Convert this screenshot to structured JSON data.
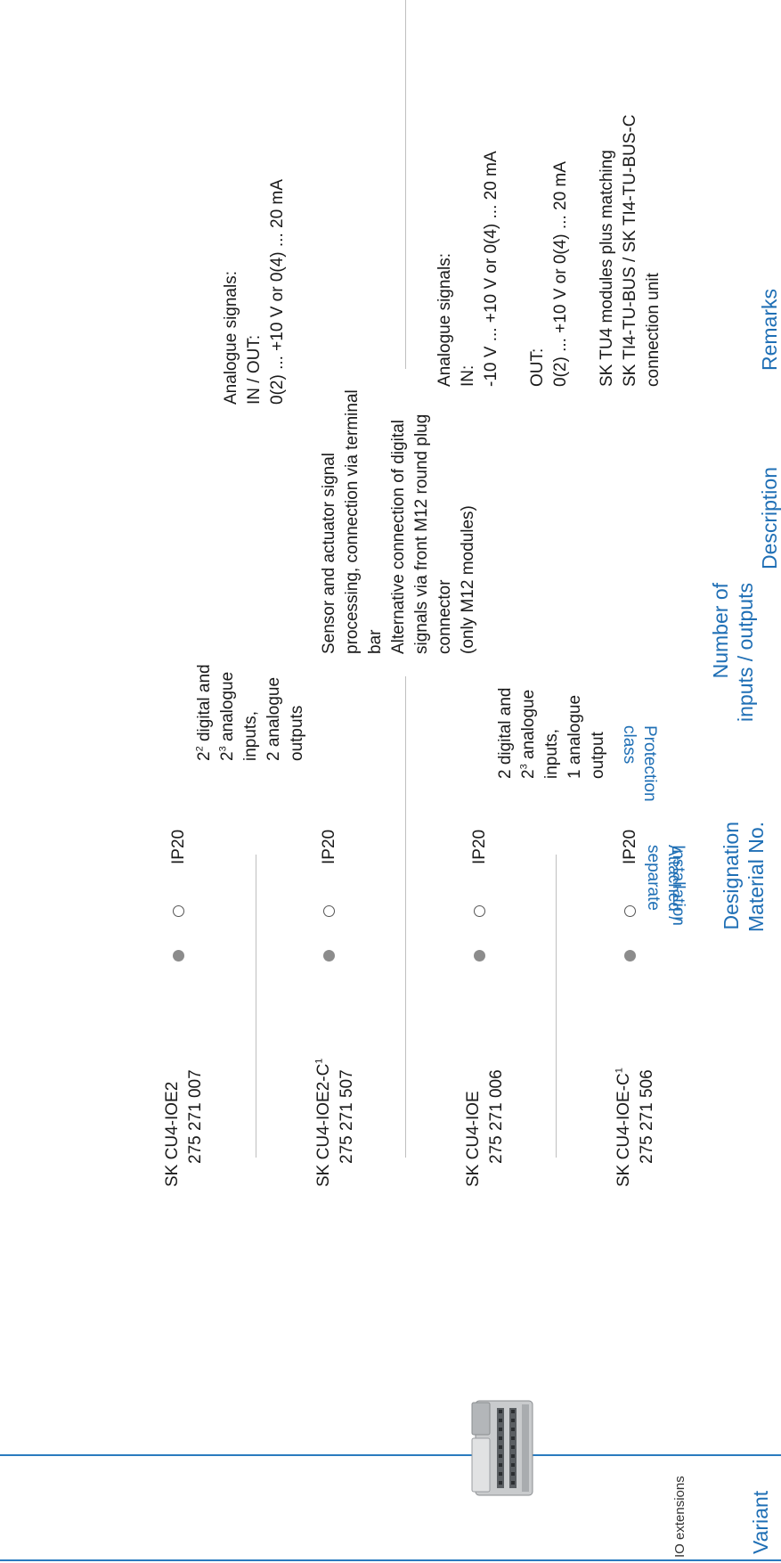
{
  "headers": {
    "variant": "Variant",
    "designation": [
      "Designation",
      "Material No."
    ],
    "installation": "Installation",
    "attached": [
      "Attached /",
      "separate"
    ],
    "protection": [
      "Protection",
      "class"
    ],
    "number": [
      "Number of",
      "inputs / outputs"
    ],
    "description": "Description",
    "remarks": "Remarks"
  },
  "variant_group": {
    "label": "IO extensions",
    "image_icon": "io-module-icon"
  },
  "rows": [
    {
      "designation": "SK CU4-IOE2",
      "sup": "",
      "material": "275 271 007",
      "protection": "IP20"
    },
    {
      "designation": "SK CU4-IOE2-C",
      "sup": "1",
      "material": "275 271 507",
      "protection": "IP20"
    },
    {
      "designation": "SK CU4-IOE",
      "sup": "",
      "material": "275 271 006",
      "protection": "IP20"
    },
    {
      "designation": "SK CU4-IOE-C",
      "sup": "1",
      "material": "275 271 506",
      "protection": "IP20"
    }
  ],
  "groups": [
    {
      "number": [
        {
          "text": "2",
          "sup": "2",
          "rest": " digital and"
        },
        {
          "text": "2",
          "sup": "3",
          "rest": " analogue"
        },
        {
          "text": "inputs,",
          "sup": "",
          "rest": ""
        },
        {
          "text": "2 analogue",
          "sup": "",
          "rest": ""
        },
        {
          "text": "outputs",
          "sup": "",
          "rest": ""
        }
      ],
      "remarks": [
        "Analogue signals:",
        "IN / OUT:",
        "0(2) ... +10 V or 0(4) ... 20 mA"
      ]
    },
    {
      "number": [
        {
          "text": "2 digital and",
          "sup": "",
          "rest": ""
        },
        {
          "text": "2",
          "sup": "3",
          "rest": " analogue"
        },
        {
          "text": "inputs,",
          "sup": "",
          "rest": ""
        },
        {
          "text": "1 analogue",
          "sup": "",
          "rest": ""
        },
        {
          "text": "output",
          "sup": "",
          "rest": ""
        }
      ],
      "remarks": [
        "Analogue signals:",
        "IN:",
        "-10 V ... +10 V or 0(4) ... 20 mA",
        "",
        "OUT:",
        "0(2) ... +10 V or 0(4) ... 20 mA",
        "",
        "SK TU4 modules plus matching",
        "SK TI4-TU-BUS / SK TI4-TU-BUS-C",
        "connection unit"
      ]
    }
  ],
  "description": [
    "Sensor and actuator signal",
    "processing, connection via terminal",
    "bar",
    "Alternative connection of digital",
    "signals via front M12 round plug",
    "connector",
    "(only M12 modules)"
  ]
}
